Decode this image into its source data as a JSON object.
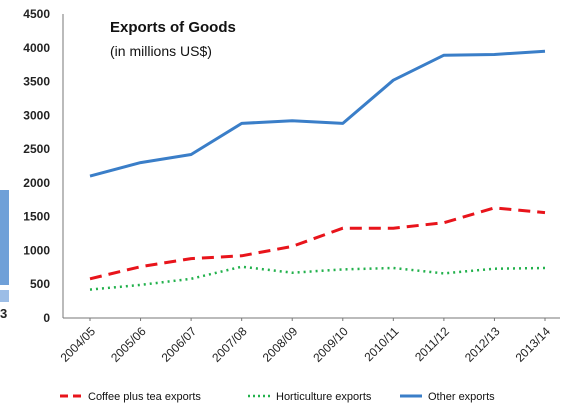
{
  "chart_data": {
    "type": "line",
    "title": "Exports of Goods",
    "subtitle": "(in millions US$)",
    "categories": [
      "2004/05",
      "2005/06",
      "2006/07",
      "2007/08",
      "2008/09",
      "2009/10",
      "2010/11",
      "2011/12",
      "2012/13",
      "2013/14"
    ],
    "y_tick_labels": [
      "0",
      "500",
      "1000",
      "1500",
      "2000",
      "2500",
      "3000",
      "3500",
      "4000",
      "4500"
    ],
    "ylim": [
      0,
      4500
    ],
    "grid": false,
    "legend_position": "bottom",
    "series": [
      {
        "name": "Coffee plus tea exports",
        "color": "#e8141b",
        "dash": "dashed",
        "values": [
          580,
          760,
          880,
          920,
          1060,
          1330,
          1330,
          1410,
          1630,
          1560
        ]
      },
      {
        "name": "Horticulture exports",
        "color": "#22b14c",
        "dash": "dotted",
        "values": [
          420,
          490,
          580,
          760,
          670,
          720,
          740,
          660,
          730,
          740
        ]
      },
      {
        "name": "Other exports",
        "color": "#3a7ec8",
        "dash": "solid",
        "values": [
          2100,
          2300,
          2420,
          2880,
          2920,
          2880,
          3520,
          3890,
          3900,
          3950
        ]
      }
    ]
  },
  "edge_fragment": "3"
}
